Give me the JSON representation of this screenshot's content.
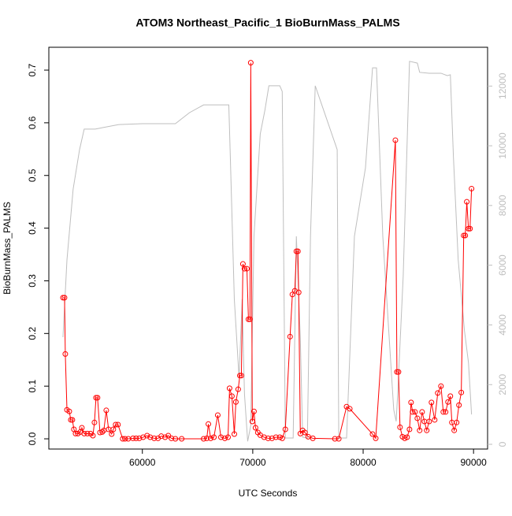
{
  "chart_data": {
    "type": "line",
    "title": "ATOM3 Northeast_Pacific_1 BioBurnMass_PALMS",
    "x_label": "UTC Seconds",
    "y_label": "BioBurnMass_PALMS",
    "xlim": [
      51528,
      91272
    ],
    "xticks": [
      60000,
      70000,
      80000,
      90000
    ],
    "ylim": [
      -0.0194,
      0.7434
    ],
    "yticks": [
      {
        "value": 0,
        "label": "0.0"
      },
      0.1,
      0.2,
      0.3,
      0.4,
      0.5,
      0.6,
      0.7
    ],
    "y2lim": [
      -158,
      13300
    ],
    "y2ticks": [
      0,
      2000,
      4000,
      6000,
      8000,
      10000,
      12000
    ],
    "y2_color": "#bebebe",
    "series": [
      {
        "color": "#bebebe",
        "axis": "y2",
        "markers": false,
        "x": [
          52810,
          53170,
          53730,
          54310,
          54730,
          55730,
          57860,
          60000,
          62990,
          64270,
          65550,
          67830,
          67970,
          68330,
          68760,
          68900,
          69040,
          69250,
          69540,
          69820,
          70110,
          70680,
          71100,
          71460,
          72450,
          72670,
          72950,
          73660,
          73950,
          74310,
          74520,
          74950,
          75230,
          75660,
          77650,
          77790,
          78500,
          79210,
          80210,
          80850,
          81210,
          81780,
          82770,
          82990,
          83130,
          83630,
          84200,
          84910,
          85120,
          85980,
          87050,
          87620,
          87900,
          88180,
          88610,
          89180,
          89540,
          89820
        ],
        "values": [
          3590,
          6180,
          8550,
          9870,
          10560,
          10560,
          10710,
          10740,
          10740,
          11110,
          11370,
          11370,
          9600,
          4860,
          2220,
          3540,
          4860,
          1690,
          100,
          630,
          6970,
          10400,
          11190,
          12010,
          12010,
          11820,
          210,
          210,
          6970,
          3540,
          240,
          210,
          6970,
          12010,
          9870,
          210,
          210,
          6970,
          9260,
          12610,
          12610,
          6970,
          1160,
          770,
          1690,
          5650,
          12830,
          12770,
          12460,
          12430,
          12430,
          12350,
          12380,
          9610,
          6180,
          3800,
          2740,
          1000
        ]
      },
      {
        "color": "#ff0000",
        "markers": true,
        "x": [
          52810,
          52950,
          53020,
          53170,
          53380,
          53520,
          53660,
          53800,
          53950,
          54160,
          54380,
          54520,
          54730,
          55020,
          55300,
          55520,
          55660,
          55800,
          55940,
          56160,
          56370,
          56510,
          56730,
          56940,
          57220,
          57370,
          57580,
          57790,
          58220,
          58430,
          58720,
          59150,
          59430,
          59720,
          60070,
          60430,
          60710,
          61070,
          61420,
          61710,
          62060,
          62350,
          62630,
          62990,
          63560,
          65550,
          65840,
          65980,
          66190,
          66480,
          66830,
          67120,
          67470,
          67760,
          67900,
          68110,
          68330,
          68470,
          68680,
          68830,
          68970,
          69110,
          69250,
          69470,
          69610,
          69750,
          69820,
          69960,
          70110,
          70250,
          70460,
          70680,
          71030,
          71390,
          71740,
          72100,
          72450,
          72670,
          72950,
          73380,
          73590,
          73810,
          73950,
          74090,
          74160,
          74310,
          74520,
          74730,
          75020,
          75440,
          77440,
          77790,
          78500,
          78790,
          80850,
          81140,
          82920,
          83060,
          83200,
          83340,
          83560,
          83770,
          83980,
          84200,
          84340,
          84480,
          84700,
          84910,
          85120,
          85340,
          85550,
          85760,
          85980,
          86190,
          86480,
          86760,
          87050,
          87260,
          87470,
          87690,
          87900,
          88040,
          88250,
          88470,
          88680,
          88890,
          89110,
          89250,
          89390,
          89540,
          89680,
          89820
        ],
        "values": [
          0.268,
          0.268,
          0.161,
          0.055,
          0.052,
          0.036,
          0.036,
          0.018,
          0.01,
          0.01,
          0.013,
          0.021,
          0.01,
          0.01,
          0.01,
          0.006,
          0.031,
          0.078,
          0.078,
          0.012,
          0.013,
          0.016,
          0.054,
          0.018,
          0.009,
          0.018,
          0.027,
          0.027,
          0,
          0,
          0,
          0.001,
          0.001,
          0.001,
          0.003,
          0.006,
          0.003,
          0.001,
          0.001,
          0.005,
          0.003,
          0.006,
          0.001,
          0,
          0,
          0,
          0.001,
          0.028,
          0.001,
          0.003,
          0.045,
          0.003,
          0.001,
          0.003,
          0.096,
          0.081,
          0.009,
          0.07,
          0.094,
          0.12,
          0.12,
          0.332,
          0.323,
          0.323,
          0.227,
          0.227,
          0.714,
          0.033,
          0.052,
          0.021,
          0.012,
          0.007,
          0.003,
          0.001,
          0.001,
          0.003,
          0.003,
          0.001,
          0.018,
          0.194,
          0.274,
          0.281,
          0.356,
          0.356,
          0.278,
          0.01,
          0.016,
          0.012,
          0.004,
          0.001,
          0,
          0,
          0.061,
          0.057,
          0.009,
          0.001,
          0.567,
          0.127,
          0.127,
          0.022,
          0.004,
          0.001,
          0.003,
          0.018,
          0.069,
          0.051,
          0.051,
          0.039,
          0.016,
          0.051,
          0.033,
          0.016,
          0.033,
          0.069,
          0.036,
          0.087,
          0.1,
          0.051,
          0.051,
          0.07,
          0.081,
          0.031,
          0.016,
          0.031,
          0.064,
          0.088,
          0.386,
          0.386,
          0.45,
          0.399,
          0.399,
          0.475
        ]
      }
    ]
  }
}
